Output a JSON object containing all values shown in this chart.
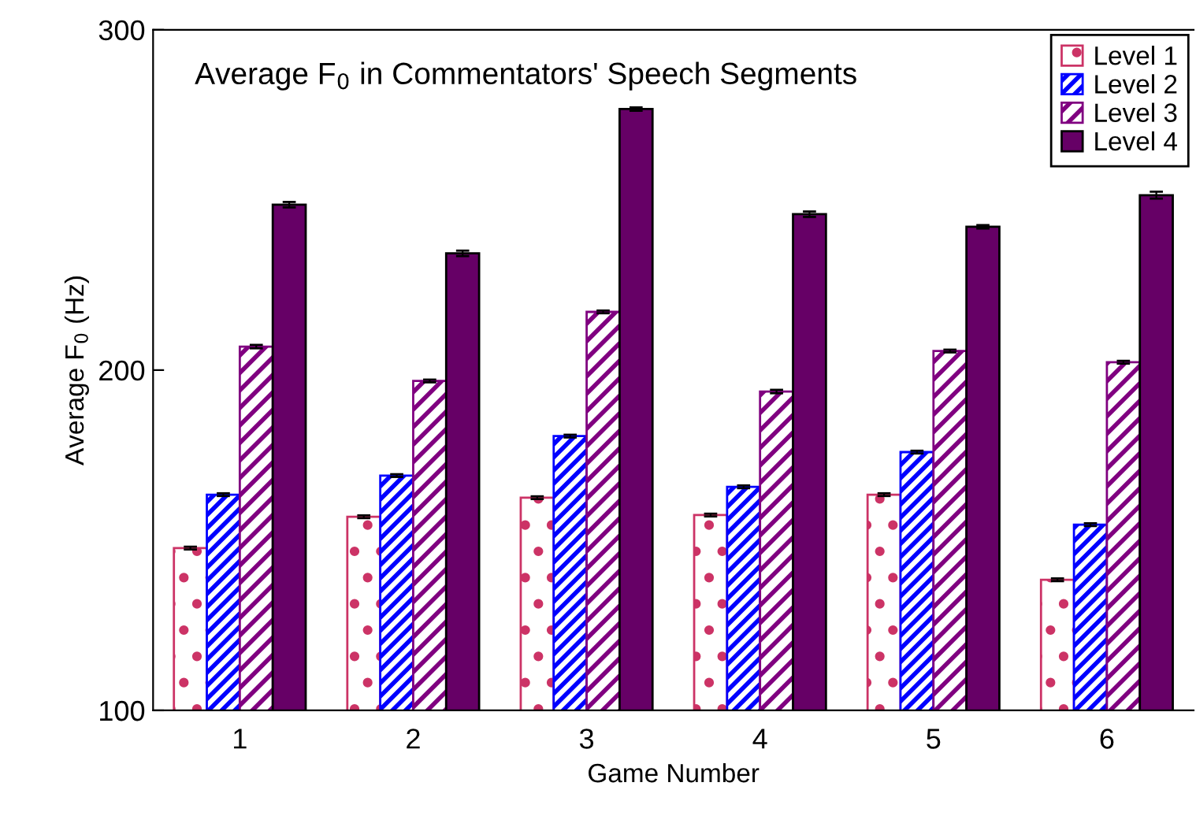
{
  "chart_data": {
    "type": "bar",
    "title": "Average F$_{0}$ in Commentators' Speech Segments",
    "xlabel": "Game Number",
    "ylabel": "Average F$_{0}$ (Hz)",
    "categories": [
      "1",
      "2",
      "3",
      "4",
      "5",
      "6"
    ],
    "series": [
      {
        "name": "Level 1",
        "color": "#cc3366",
        "values": [
          147.7,
          156.9,
          162.5,
          157.4,
          163.4,
          138.4
        ],
        "errors": [
          0.4,
          0.4,
          0.4,
          0.4,
          0.4,
          0.4
        ]
      },
      {
        "name": "Level 2",
        "color": "#0000ff",
        "values": [
          163.4,
          169,
          180.6,
          165.7,
          175.9,
          154.6
        ],
        "errors": [
          0.4,
          0.4,
          0.4,
          0.4,
          0.4,
          0.4
        ]
      },
      {
        "name": "Level 3",
        "color": "#800080",
        "values": [
          206.9,
          196.8,
          217.1,
          193.7,
          205.6,
          202.3
        ],
        "errors": [
          0.5,
          0.4,
          0.4,
          0.5,
          0.4,
          0.4
        ]
      },
      {
        "name": "Level 4",
        "color": "#660066",
        "values": [
          248.6,
          234.3,
          276.7,
          245.8,
          242.1,
          251.4
        ],
        "errors": [
          0.8,
          0.8,
          0.5,
          0.8,
          0.5,
          1.0
        ]
      }
    ],
    "ylim": [
      100,
      300
    ],
    "yticks": [
      100,
      200,
      300
    ],
    "grid": false,
    "legend": "top right"
  }
}
